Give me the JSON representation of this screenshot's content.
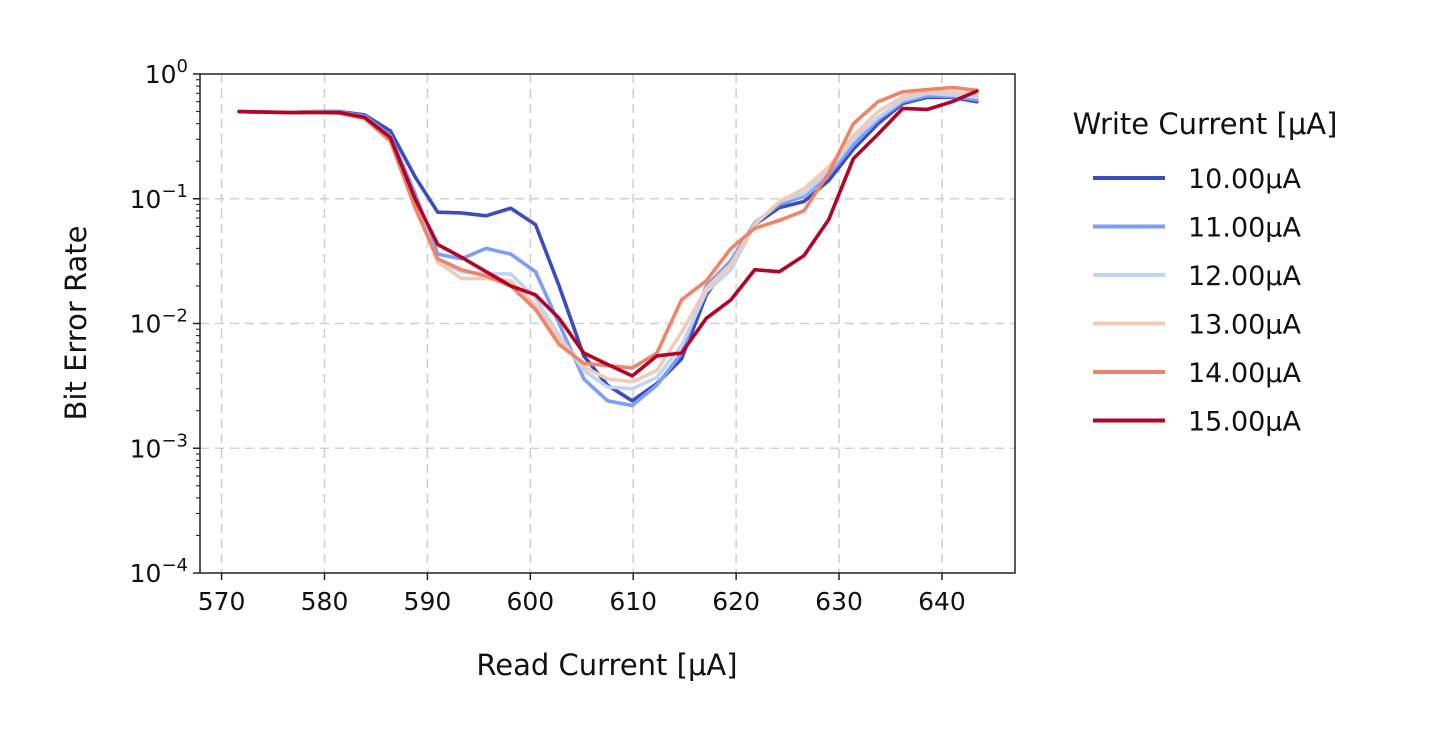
{
  "chart_data": {
    "type": "line",
    "xlabel": "Read Current [μA]",
    "ylabel": "Bit Error Rate",
    "xlim": [
      567.9,
      647.1
    ],
    "ylim": [
      0.0001,
      1
    ],
    "yscale": "log",
    "grid": true,
    "legend_position": "outside-right",
    "legend_title": "Write Current [μA]",
    "x_ticks": [
      570,
      580,
      590,
      600,
      610,
      620,
      630,
      640
    ],
    "x_tick_labels": [
      "570",
      "580",
      "590",
      "600",
      "610",
      "620",
      "630",
      "640"
    ],
    "y_ticks": [
      {
        "value": 1,
        "base": "10",
        "exp": "0"
      },
      {
        "value": 0.1,
        "base": "10",
        "exp": "−1"
      },
      {
        "value": 0.01,
        "base": "10",
        "exp": "−2"
      },
      {
        "value": 0.001,
        "base": "10",
        "exp": "−3"
      },
      {
        "value": 0.0001,
        "base": "10",
        "exp": "−4"
      }
    ],
    "x": [
      571.7,
      574.1,
      576.6,
      579.0,
      581.5,
      583.9,
      586.4,
      588.8,
      591.0,
      593.3,
      595.7,
      598.1,
      600.5,
      602.8,
      605.2,
      607.5,
      609.9,
      612.3,
      614.7,
      617.1,
      619.5,
      621.8,
      624.2,
      626.6,
      629.0,
      631.4,
      633.8,
      636.2,
      638.6,
      641.0,
      643.4
    ],
    "series": [
      {
        "name": "10.00μA",
        "color": "#3b4cc0",
        "values": [
          0.5,
          0.495,
          0.49,
          0.5,
          0.5,
          0.47,
          0.35,
          0.15,
          0.078,
          0.077,
          0.073,
          0.084,
          0.062,
          0.02,
          0.0055,
          0.0032,
          0.0024,
          0.0033,
          0.0052,
          0.017,
          0.032,
          0.062,
          0.085,
          0.095,
          0.14,
          0.25,
          0.4,
          0.58,
          0.65,
          0.65,
          0.6
        ]
      },
      {
        "name": "11.00μA",
        "color": "#7b9ff9",
        "values": [
          0.5,
          0.495,
          0.49,
          0.495,
          0.495,
          0.46,
          0.32,
          0.11,
          0.036,
          0.033,
          0.04,
          0.036,
          0.026,
          0.01,
          0.0036,
          0.0024,
          0.0022,
          0.0032,
          0.0058,
          0.02,
          0.032,
          0.064,
          0.09,
          0.105,
          0.155,
          0.27,
          0.43,
          0.6,
          0.67,
          0.66,
          0.62
        ]
      },
      {
        "name": "12.00μA",
        "color": "#c0d4f5",
        "values": [
          0.5,
          0.495,
          0.49,
          0.495,
          0.49,
          0.45,
          0.3,
          0.095,
          0.032,
          0.026,
          0.025,
          0.025,
          0.016,
          0.008,
          0.0042,
          0.0031,
          0.003,
          0.0037,
          0.0067,
          0.018,
          0.027,
          0.062,
          0.095,
          0.11,
          0.165,
          0.3,
          0.45,
          0.62,
          0.7,
          0.68,
          0.65
        ]
      },
      {
        "name": "13.00μA",
        "color": "#f2cbb7",
        "values": [
          0.5,
          0.495,
          0.49,
          0.495,
          0.49,
          0.45,
          0.3,
          0.09,
          0.031,
          0.023,
          0.023,
          0.022,
          0.014,
          0.0075,
          0.0045,
          0.0036,
          0.0034,
          0.0042,
          0.0085,
          0.019,
          0.03,
          0.062,
          0.095,
          0.12,
          0.18,
          0.32,
          0.5,
          0.66,
          0.72,
          0.72,
          0.68
        ]
      },
      {
        "name": "14.00μA",
        "color": "#ee8468",
        "values": [
          0.5,
          0.495,
          0.49,
          0.495,
          0.485,
          0.44,
          0.29,
          0.085,
          0.033,
          0.027,
          0.024,
          0.02,
          0.013,
          0.0068,
          0.0048,
          0.0046,
          0.0044,
          0.0058,
          0.0155,
          0.022,
          0.04,
          0.058,
          0.067,
          0.08,
          0.16,
          0.4,
          0.6,
          0.72,
          0.75,
          0.78,
          0.74
        ]
      },
      {
        "name": "15.00μA",
        "color": "#b40426",
        "values": [
          0.5,
          0.495,
          0.49,
          0.49,
          0.49,
          0.45,
          0.31,
          0.1,
          0.043,
          0.034,
          0.026,
          0.02,
          0.017,
          0.011,
          0.0058,
          0.0047,
          0.0038,
          0.0055,
          0.0058,
          0.011,
          0.0155,
          0.027,
          0.026,
          0.035,
          0.068,
          0.21,
          0.33,
          0.53,
          0.52,
          0.6,
          0.73
        ]
      }
    ]
  }
}
